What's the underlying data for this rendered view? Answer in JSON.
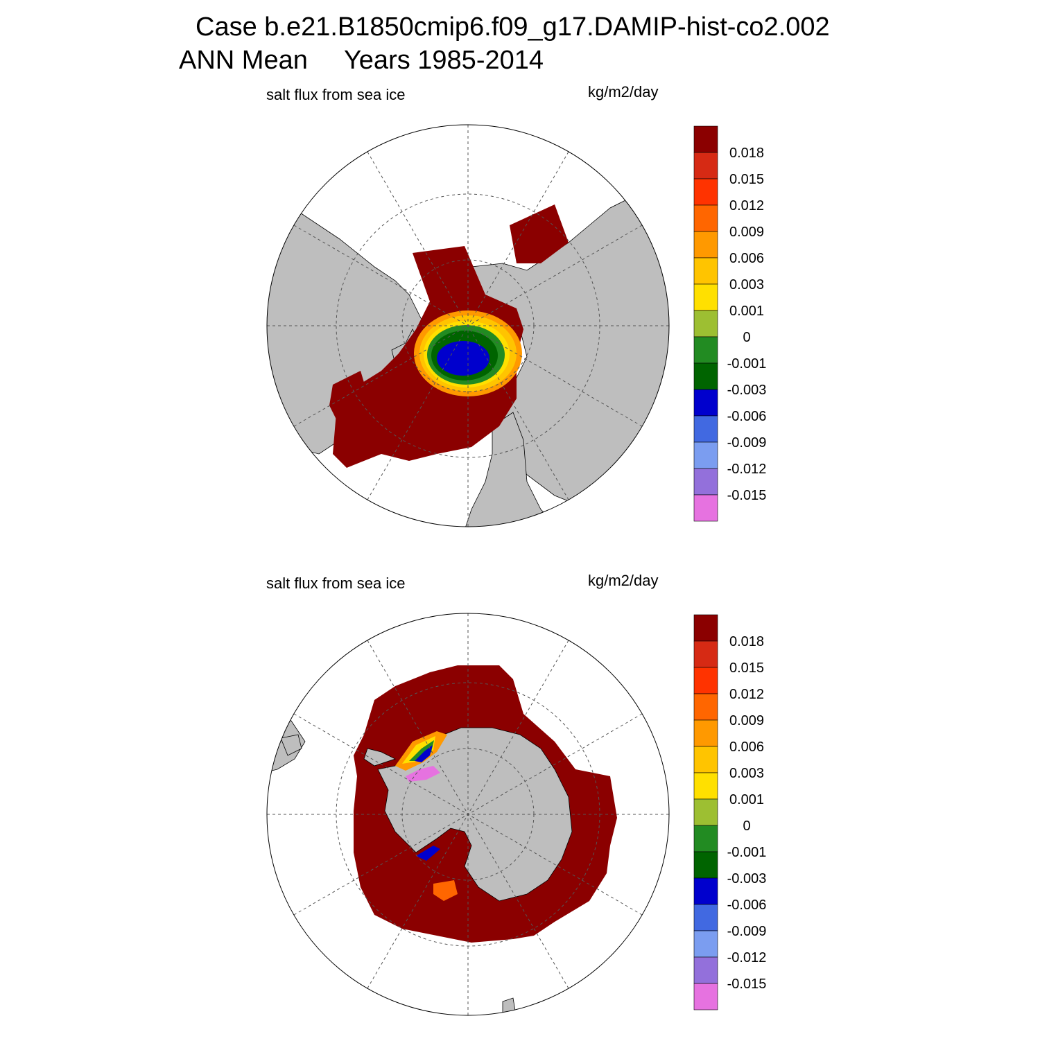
{
  "title": {
    "line1": "Case b.e21.B1850cmip6.f09_g17.DAMIP-hist-co2.002",
    "line2": "ANN Mean     Years 1985-2014"
  },
  "panels": [
    {
      "variable_label": "salt flux from sea ice",
      "units_label": "kg/m2/day"
    },
    {
      "variable_label": "salt flux from sea ice",
      "units_label": "kg/m2/day"
    }
  ],
  "colorbar": {
    "tick_labels": [
      "0.018",
      "0.015",
      "0.012",
      "0.009",
      "0.006",
      "0.003",
      "0.001",
      "0",
      "-0.001",
      "-0.003",
      "-0.006",
      "-0.009",
      "-0.012",
      "-0.015"
    ],
    "colors": [
      "#8b0000",
      "#d62a14",
      "#ff3300",
      "#ff6600",
      "#ff9900",
      "#ffc400",
      "#ffe000",
      "#9dbf32",
      "#228b22",
      "#006400",
      "#0000cd",
      "#4169e1",
      "#7b9df0",
      "#9370db",
      "#e672e0"
    ]
  },
  "map_colors": {
    "land": "#bebebe",
    "ocean": "#ffffff",
    "grid": "#555555"
  }
}
